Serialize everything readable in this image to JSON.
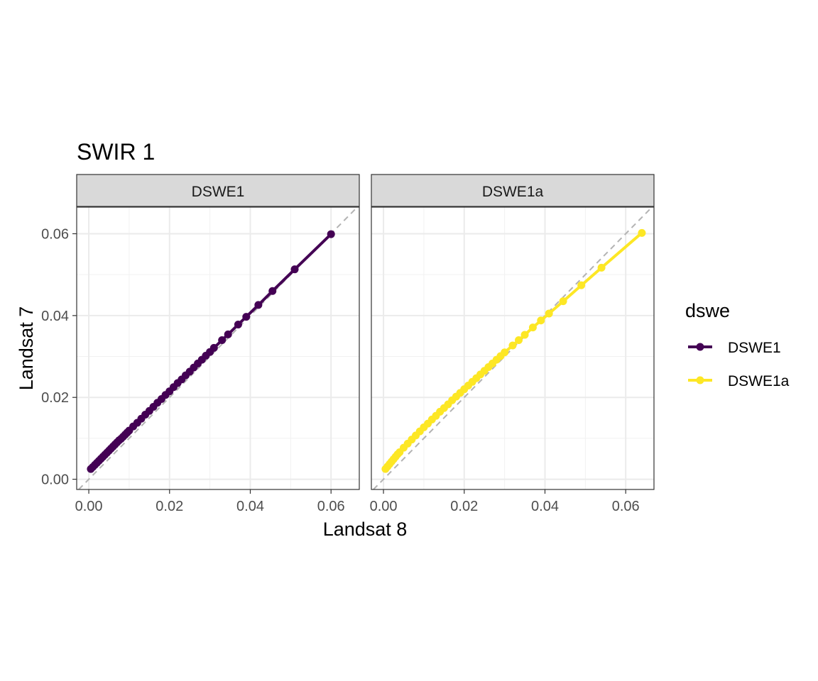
{
  "chart_data": {
    "type": "line",
    "title": "SWIR 1",
    "xlabel": "Landsat 8",
    "ylabel": "Landsat 7",
    "xlim": [
      -0.003,
      0.067
    ],
    "ylim": [
      -0.0025,
      0.0665
    ],
    "x_ticks": [
      0.0,
      0.02,
      0.04,
      0.06
    ],
    "x_tick_labels": [
      "0.00",
      "0.02",
      "0.04",
      "0.06"
    ],
    "y_ticks": [
      0.0,
      0.02,
      0.04,
      0.06
    ],
    "y_tick_labels": [
      "0.00",
      "0.02",
      "0.04",
      "0.06"
    ],
    "grid": true,
    "reference_line": "y = x",
    "legend": {
      "title": "dswe",
      "position": "right",
      "entries": [
        {
          "label": "DSWE1",
          "color": "#440154"
        },
        {
          "label": "DSWE1a",
          "color": "#FDE725"
        }
      ]
    },
    "facets": [
      {
        "label": "DSWE1",
        "series_color": "#440154",
        "x": [
          0.0005,
          0.001,
          0.0015,
          0.002,
          0.0025,
          0.003,
          0.0035,
          0.004,
          0.0045,
          0.005,
          0.0055,
          0.006,
          0.0065,
          0.007,
          0.0075,
          0.008,
          0.0085,
          0.009,
          0.0095,
          0.01,
          0.011,
          0.012,
          0.013,
          0.014,
          0.015,
          0.016,
          0.017,
          0.018,
          0.019,
          0.02,
          0.021,
          0.022,
          0.023,
          0.024,
          0.025,
          0.026,
          0.027,
          0.028,
          0.029,
          0.03,
          0.031,
          0.033,
          0.0345,
          0.037,
          0.039,
          0.042,
          0.0455,
          0.051,
          0.06
        ],
        "y": [
          0.0025,
          0.003,
          0.0035,
          0.004,
          0.0045,
          0.005,
          0.0055,
          0.006,
          0.0065,
          0.007,
          0.0075,
          0.008,
          0.0085,
          0.009,
          0.0095,
          0.0099,
          0.0104,
          0.0109,
          0.0114,
          0.0119,
          0.0129,
          0.0138,
          0.0148,
          0.0158,
          0.0167,
          0.0177,
          0.0187,
          0.0196,
          0.0206,
          0.0215,
          0.0225,
          0.0235,
          0.0244,
          0.0254,
          0.0263,
          0.0273,
          0.0283,
          0.0292,
          0.0302,
          0.0311,
          0.0321,
          0.034,
          0.0354,
          0.0378,
          0.0397,
          0.0426,
          0.046,
          0.0513,
          0.0599
        ]
      },
      {
        "label": "DSWE1a",
        "series_color": "#FDE725",
        "x": [
          0.0005,
          0.001,
          0.0015,
          0.002,
          0.0025,
          0.003,
          0.0035,
          0.004,
          0.005,
          0.006,
          0.007,
          0.008,
          0.009,
          0.01,
          0.011,
          0.012,
          0.013,
          0.014,
          0.015,
          0.016,
          0.017,
          0.018,
          0.019,
          0.02,
          0.021,
          0.022,
          0.023,
          0.024,
          0.025,
          0.026,
          0.027,
          0.028,
          0.029,
          0.03,
          0.032,
          0.0335,
          0.035,
          0.037,
          0.039,
          0.041,
          0.0445,
          0.049,
          0.054,
          0.064
        ],
        "y": [
          0.0025,
          0.0031,
          0.0037,
          0.0043,
          0.0049,
          0.0055,
          0.0061,
          0.0066,
          0.0077,
          0.0087,
          0.0097,
          0.0107,
          0.0117,
          0.0127,
          0.0136,
          0.0146,
          0.0155,
          0.0165,
          0.0174,
          0.0183,
          0.0193,
          0.0202,
          0.0211,
          0.022,
          0.0229,
          0.0238,
          0.0247,
          0.0256,
          0.0265,
          0.0274,
          0.0283,
          0.0292,
          0.0301,
          0.031,
          0.0327,
          0.034,
          0.0353,
          0.0371,
          0.0388,
          0.0405,
          0.0435,
          0.0474,
          0.0517,
          0.0602
        ]
      }
    ]
  }
}
